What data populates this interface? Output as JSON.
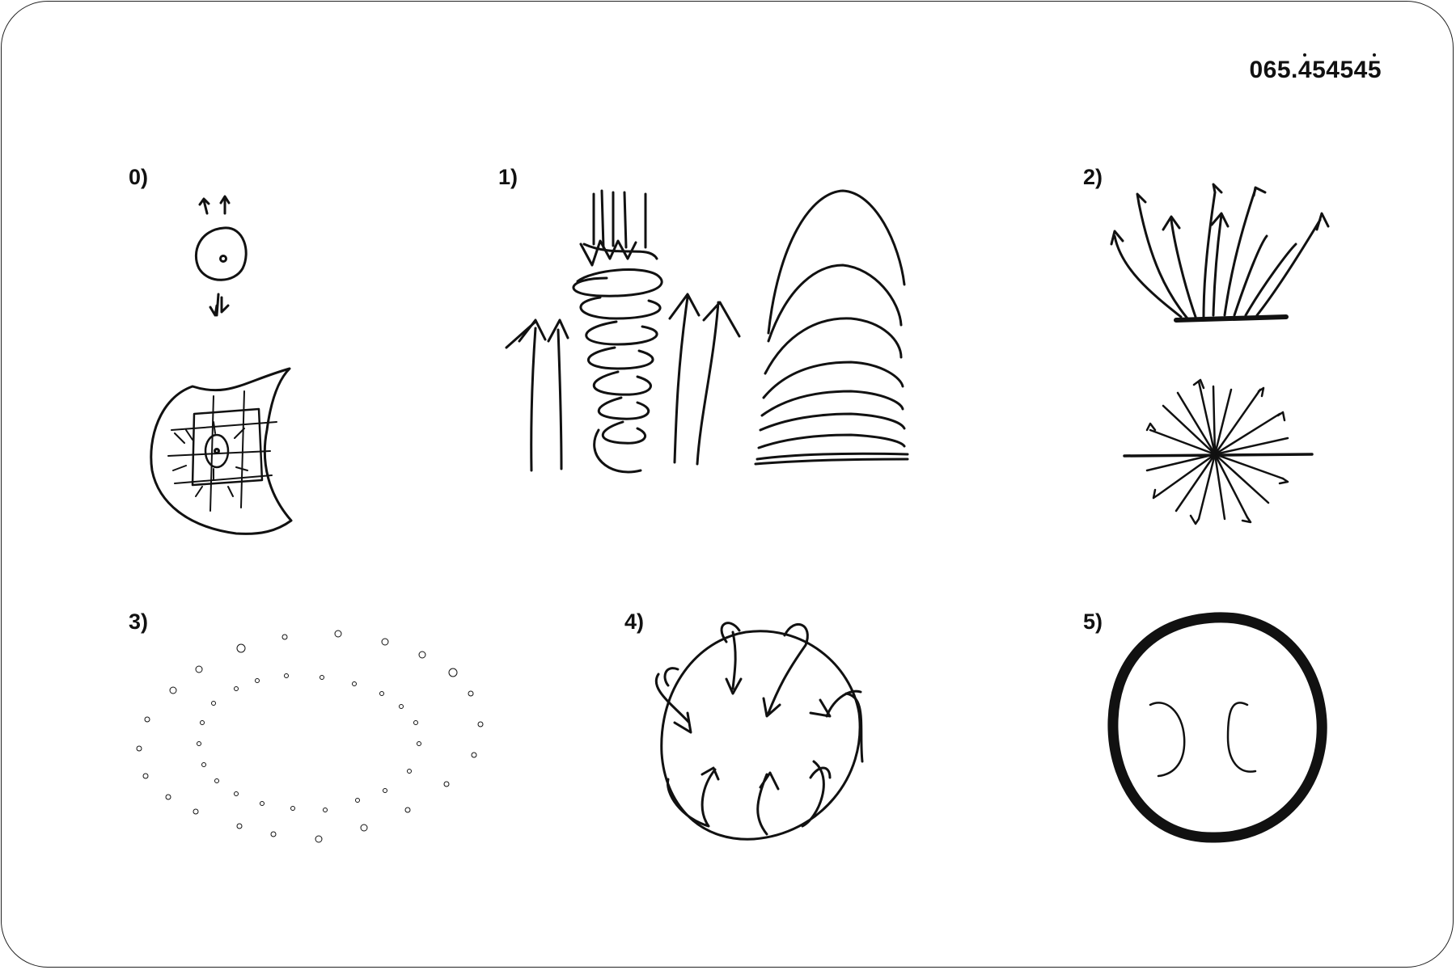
{
  "code": {
    "prefix": "065.",
    "digits": [
      "4",
      "5",
      "4",
      "5",
      "4",
      "5"
    ],
    "dotted_indices": [
      0,
      5
    ]
  },
  "panels": [
    {
      "label": "0)"
    },
    {
      "label": "1)"
    },
    {
      "label": "2)"
    },
    {
      "label": "3)"
    },
    {
      "label": "4)"
    },
    {
      "label": "5)"
    }
  ]
}
